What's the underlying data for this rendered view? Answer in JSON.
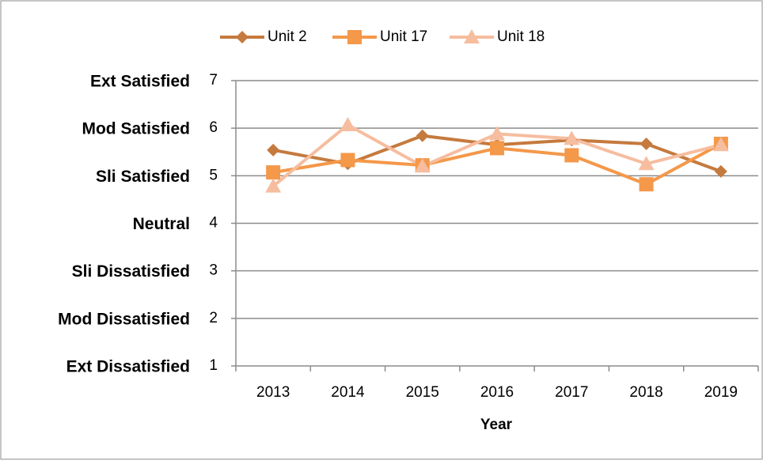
{
  "chart_data": {
    "type": "line",
    "x_label": "Year",
    "categories": [
      "2013",
      "2014",
      "2015",
      "2016",
      "2017",
      "2018",
      "2019"
    ],
    "series": [
      {
        "name": "Unit 2",
        "color": "#c57a3e",
        "marker": "diamond",
        "values": [
          5.54,
          5.25,
          5.84,
          5.65,
          5.75,
          5.67,
          5.09
        ]
      },
      {
        "name": "Unit 17",
        "color": "#f4984a",
        "marker": "square",
        "values": [
          5.07,
          5.33,
          5.22,
          5.58,
          5.43,
          4.82,
          5.67
        ]
      },
      {
        "name": "Unit 18",
        "color": "#f6bd9f",
        "marker": "triangle",
        "values": [
          4.78,
          6.07,
          5.2,
          5.88,
          5.78,
          5.25,
          5.65
        ]
      }
    ],
    "ylim": [
      1,
      7
    ],
    "yticks": [
      1,
      2,
      3,
      4,
      5,
      6,
      7
    ],
    "y_descriptions": [
      "Ext Dissatisfied",
      "Mod Dissatisfied",
      "Sli Dissatisfied",
      "Neutral",
      "Sli Satisfied",
      "Mod Satisfied",
      "Ext Satisfied"
    ],
    "grid": true,
    "legend": "top"
  }
}
